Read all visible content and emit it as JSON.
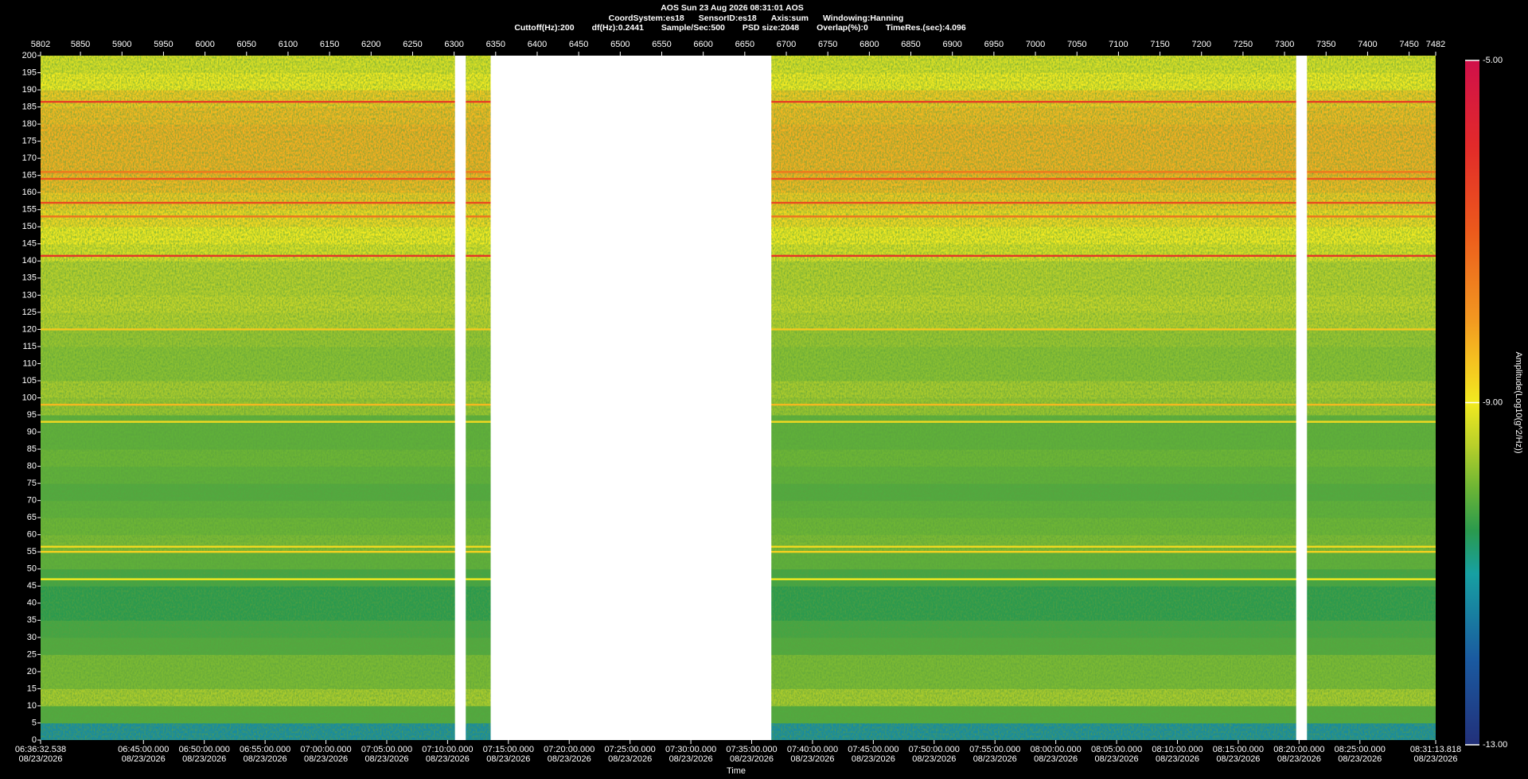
{
  "header": {
    "title": "AOS  Sun 23 Aug 2026 08:31:01  AOS",
    "line2": [
      "CoordSystem:es18",
      "SensorID:es18",
      "Axis:sum",
      "Windowing:Hanning"
    ],
    "line3": [
      "Cuttoff(Hz):200",
      "df(Hz):0.2441",
      "Sample/Sec:500",
      "PSD size:2048",
      "Overlap(%):0",
      "TimeRes.(sec):4.096"
    ]
  },
  "chart_data": {
    "type": "spectrogram",
    "xlabel": "Time",
    "xlim": [
      5802,
      7482
    ],
    "xticks": [
      5802,
      5850,
      5900,
      5950,
      6000,
      6050,
      6100,
      6150,
      6200,
      6250,
      6300,
      6350,
      6400,
      6450,
      6500,
      6550,
      6600,
      6650,
      6700,
      6750,
      6800,
      6850,
      6900,
      6950,
      7000,
      7050,
      7100,
      7150,
      7200,
      7250,
      7300,
      7350,
      7400,
      7450,
      7482
    ],
    "x2lim": [
      "2026-08-23T06:36:32.538",
      "2026-08-23T08:31:13.818"
    ],
    "x2ticks": [
      {
        "value": "2026-08-23T06:36:32.538",
        "label": "06:36:32.538",
        "date": "08/23/2026"
      },
      {
        "value": "2026-08-23T06:45:00.000",
        "label": "06:45:00.000",
        "date": "08/23/2026"
      },
      {
        "value": "2026-08-23T06:50:00.000",
        "label": "06:50:00.000",
        "date": "08/23/2026"
      },
      {
        "value": "2026-08-23T06:55:00.000",
        "label": "06:55:00.000",
        "date": "08/23/2026"
      },
      {
        "value": "2026-08-23T07:00:00.000",
        "label": "07:00:00.000",
        "date": "08/23/2026"
      },
      {
        "value": "2026-08-23T07:05:00.000",
        "label": "07:05:00.000",
        "date": "08/23/2026"
      },
      {
        "value": "2026-08-23T07:10:00.000",
        "label": "07:10:00.000",
        "date": "08/23/2026"
      },
      {
        "value": "2026-08-23T07:15:00.000",
        "label": "07:15:00.000",
        "date": "08/23/2026"
      },
      {
        "value": "2026-08-23T07:20:00.000",
        "label": "07:20:00.000",
        "date": "08/23/2026"
      },
      {
        "value": "2026-08-23T07:25:00.000",
        "label": "07:25:00.000",
        "date": "08/23/2026"
      },
      {
        "value": "2026-08-23T07:30:00.000",
        "label": "07:30:00.000",
        "date": "08/23/2026"
      },
      {
        "value": "2026-08-23T07:35:00.000",
        "label": "07:35:00.000",
        "date": "08/23/2026"
      },
      {
        "value": "2026-08-23T07:40:00.000",
        "label": "07:40:00.000",
        "date": "08/23/2026"
      },
      {
        "value": "2026-08-23T07:45:00.000",
        "label": "07:45:00.000",
        "date": "08/23/2026"
      },
      {
        "value": "2026-08-23T07:50:00.000",
        "label": "07:50:00.000",
        "date": "08/23/2026"
      },
      {
        "value": "2026-08-23T07:55:00.000",
        "label": "07:55:00.000",
        "date": "08/23/2026"
      },
      {
        "value": "2026-08-23T08:00:00.000",
        "label": "08:00:00.000",
        "date": "08/23/2026"
      },
      {
        "value": "2026-08-23T08:05:00.000",
        "label": "08:05:00.000",
        "date": "08/23/2026"
      },
      {
        "value": "2026-08-23T08:10:00.000",
        "label": "08:10:00.000",
        "date": "08/23/2026"
      },
      {
        "value": "2026-08-23T08:15:00.000",
        "label": "08:15:00.000",
        "date": "08/23/2026"
      },
      {
        "value": "2026-08-23T08:20:00.000",
        "label": "08:20:00.000",
        "date": "08/23/2026"
      },
      {
        "value": "2026-08-23T08:25:00.000",
        "label": "08:25:00.000",
        "date": "08/23/2026"
      },
      {
        "value": "2026-08-23T08:31:13.818",
        "label": "08:31:13.818",
        "date": "08/23/2026"
      }
    ],
    "ylim": [
      0,
      200
    ],
    "yticks": [
      0,
      5,
      10,
      15,
      20,
      25,
      30,
      35,
      40,
      45,
      50,
      55,
      60,
      65,
      70,
      75,
      80,
      85,
      90,
      95,
      100,
      105,
      110,
      115,
      120,
      125,
      130,
      135,
      140,
      145,
      150,
      155,
      160,
      165,
      170,
      175,
      180,
      185,
      190,
      195,
      200
    ],
    "spectrum": {
      "frequencies": [
        0,
        5,
        10,
        15,
        20,
        25,
        30,
        35,
        40,
        45,
        50,
        55,
        60,
        65,
        70,
        75,
        80,
        85,
        90,
        95,
        100,
        105,
        110,
        115,
        120,
        125,
        130,
        135,
        140,
        145,
        150,
        155,
        160,
        165,
        170,
        175,
        180,
        185,
        190,
        195
      ],
      "amplitude": [
        -11.3,
        -10.2,
        -9.6,
        -9.9,
        -9.9,
        -10.2,
        -10.3,
        -10.5,
        -10.5,
        -10.3,
        -10.1,
        -9.9,
        -10.0,
        -10.1,
        -10.2,
        -10.1,
        -10.0,
        -10.1,
        -10.1,
        -9.7,
        -9.6,
        -9.8,
        -9.8,
        -9.7,
        -9.5,
        -9.4,
        -9.5,
        -9.5,
        -9.2,
        -9.0,
        -8.8,
        -8.6,
        -8.4,
        -8.3,
        -8.3,
        -8.3,
        -8.4,
        -8.6,
        -9.0,
        -9.2
      ]
    },
    "tones": {
      "frequencies": [
        186.5,
        166,
        164,
        157,
        153,
        141.5,
        120,
        98,
        93,
        56.5,
        55,
        47
      ],
      "amplitude": [
        -6.4,
        -7.5,
        -6.9,
        -6.7,
        -7.4,
        -6.2,
        -8.6,
        -8.4,
        -8.8,
        -8.8,
        -8.7,
        -9.0
      ]
    },
    "gaps": [
      [
        6301,
        6314
      ],
      [
        6344,
        6682
      ],
      [
        7314,
        7327
      ]
    ],
    "colorbar_label": "Amplitude(Log10(g^2/Hz))",
    "clim": [
      -13,
      -5
    ],
    "cticks": [
      {
        "value": -5,
        "label": "-5.00"
      },
      {
        "value": -9,
        "label": "-9.00"
      },
      {
        "value": -13,
        "label": "-13.00"
      }
    ],
    "colormap": [
      [
        -13,
        "#22307a"
      ],
      [
        -12,
        "#1a5aa0"
      ],
      [
        -11,
        "#17a0a2"
      ],
      [
        -10.5,
        "#2a9a4e"
      ],
      [
        -10,
        "#6cb535"
      ],
      [
        -9.5,
        "#b8d02a"
      ],
      [
        -9,
        "#f2ea20"
      ],
      [
        -8.5,
        "#f5c020"
      ],
      [
        -8,
        "#f29620"
      ],
      [
        -7,
        "#ec5a1c"
      ],
      [
        -6,
        "#e22a2a"
      ],
      [
        -5,
        "#d0104a"
      ]
    ]
  }
}
